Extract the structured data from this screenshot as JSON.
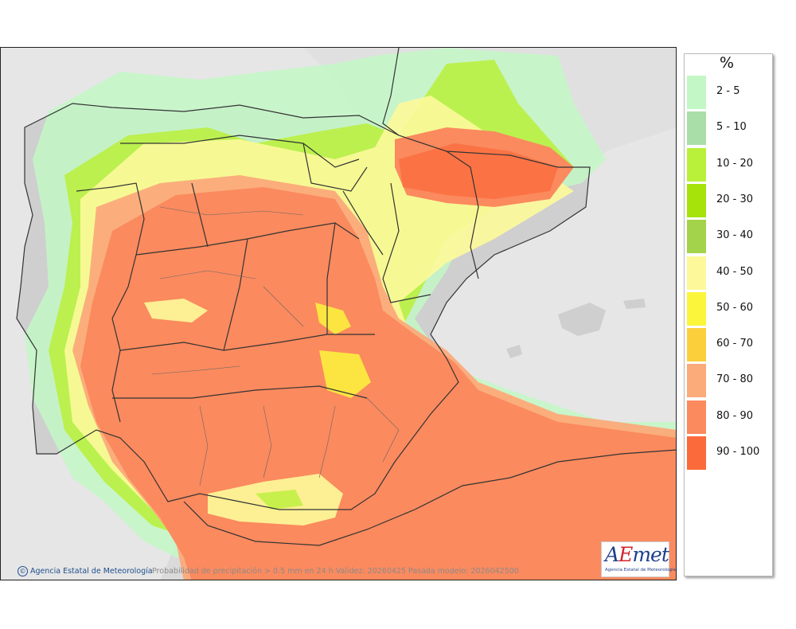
{
  "legend": {
    "unit": "%",
    "items": [
      {
        "label": "2 - 5",
        "color": "#c3f7c6"
      },
      {
        "label": "5 - 10",
        "color": "#a9dea9"
      },
      {
        "label": "10 - 20",
        "color": "#b9f03a"
      },
      {
        "label": "20 - 30",
        "color": "#a6e30a"
      },
      {
        "label": "30 - 40",
        "color": "#a2d34a"
      },
      {
        "label": "40 - 50",
        "color": "#fdf99a"
      },
      {
        "label": "50 - 60",
        "color": "#fbf53c"
      },
      {
        "label": "60 - 70",
        "color": "#fbcf3c"
      },
      {
        "label": "70 - 80",
        "color": "#fbaa7a"
      },
      {
        "label": "80 - 90",
        "color": "#fb8a5e"
      },
      {
        "label": "90 - 100",
        "color": "#fb6a3a"
      }
    ]
  },
  "footer": {
    "credit": "Agencia Estatal de Meteorología",
    "info": "Probabilidad de precipitación > 0.5 mm en 24 h Validez: 20260425 Pasada modelo: 2026042500"
  },
  "logo": {
    "text_a": "A",
    "text_e": "E",
    "text_rest": "met",
    "subtitle": "Agencia Estatal de Meteorología"
  },
  "colors": {
    "land_gray": "#cfcfcf",
    "sea_gray": "#e6e6e6",
    "borders": "#333333"
  }
}
